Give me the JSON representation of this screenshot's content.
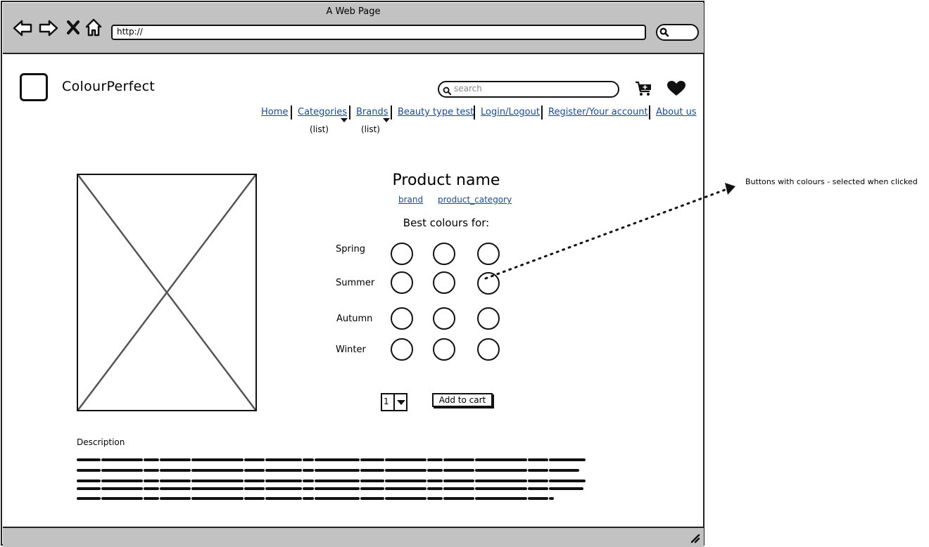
{
  "browser": {
    "title": "A Web Page",
    "address": "http://"
  },
  "site": {
    "name": "ColourPerfect",
    "search_placeholder": "search"
  },
  "nav": {
    "home": "Home",
    "categories": "Categories",
    "categories_sub": "(list)",
    "brands": "Brands",
    "brands_sub": "(list)",
    "beauty_test": "Beauty type test",
    "login": "Login/Logout",
    "register": "Register/Your account",
    "about": "About us"
  },
  "product": {
    "name": "Product name",
    "brand_link": "brand",
    "category_link": "product_category",
    "best_colours_label": "Best colours for:",
    "seasons": [
      {
        "label": "Spring",
        "swatch_count": 3
      },
      {
        "label": "Summer",
        "swatch_count": 3
      },
      {
        "label": "Autumn",
        "swatch_count": 3
      },
      {
        "label": "Winter",
        "swatch_count": 3
      }
    ],
    "quantity": "1",
    "add_to_cart_label": "Add to cart",
    "description_label": "Description"
  },
  "annotation": {
    "note": "Buttons with colours - selected when clicked"
  },
  "colors": {
    "chrome": "#c2c2c2",
    "link": "#1b4a8f",
    "outline": "#111111"
  }
}
